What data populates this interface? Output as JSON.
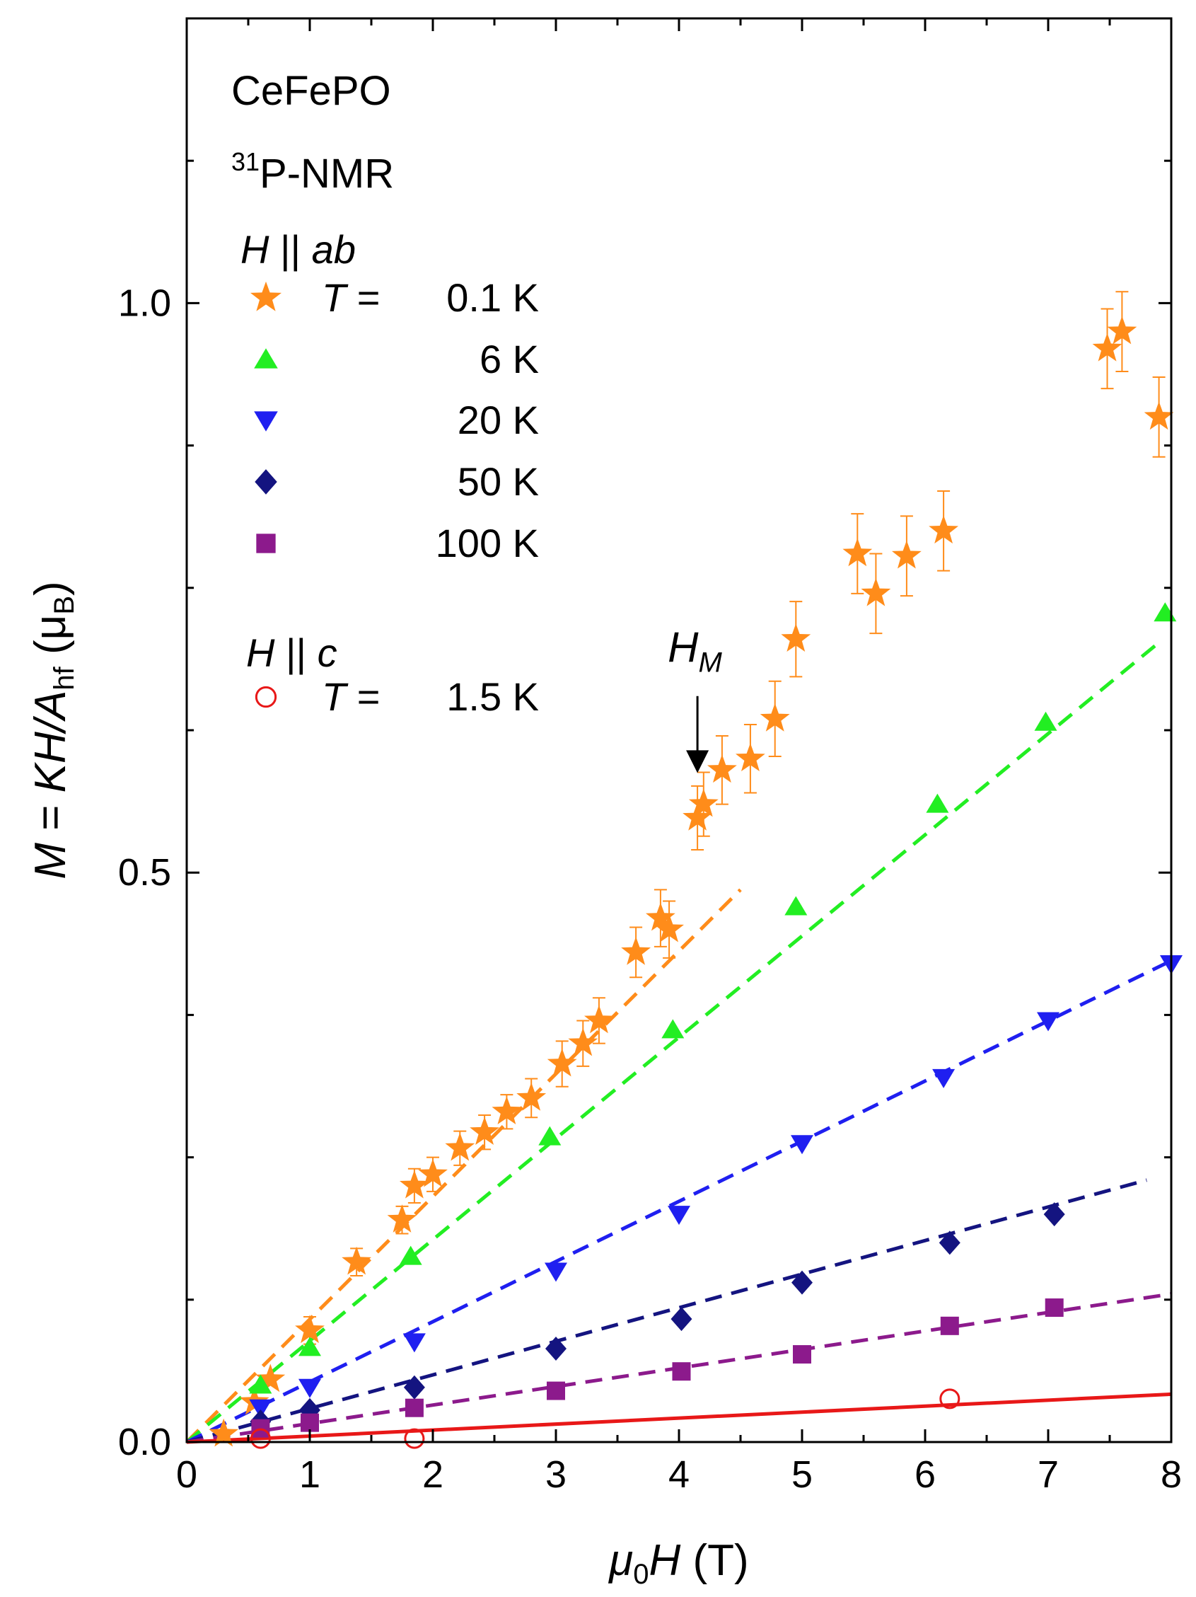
{
  "chart_data": {
    "type": "scatter",
    "title": "",
    "xlabel": {
      "prefix": "μ",
      "sub": "0",
      "var": "H",
      "unit": " (T)"
    },
    "ylabel": {
      "var1": "M",
      "eq": " = ",
      "var2": "KH/A",
      "sub": "hf",
      "unit_open": " (μ",
      "unit_sub": "B",
      "unit_close": ")"
    },
    "xlim": [
      0,
      8
    ],
    "ylim": [
      0,
      1.25
    ],
    "xticks": [
      0,
      1,
      2,
      3,
      4,
      5,
      6,
      7,
      8
    ],
    "yticks": [
      0.0,
      0.5,
      1.0
    ],
    "ytick_labels": [
      "0.0",
      "0.5",
      "1.0"
    ],
    "annotations": {
      "compound": "CeFePO",
      "nmr_mass": "31",
      "nmr_rest": "P-NMR",
      "group_ab": {
        "H": "H",
        "sym": " || ",
        "dir": "ab"
      },
      "group_c": {
        "H": "H",
        "sym": " || ",
        "dir": "c"
      },
      "hm_label": "H",
      "hm_sub": "M",
      "hm_x": 4.15,
      "hm_y_from": 0.655,
      "hm_y_to": 0.59
    },
    "series": [
      {
        "name": "0.1 K",
        "legend_prefix": "T",
        "legend_eq": " =  ",
        "label": "0.1 K",
        "marker": "star",
        "color": "#ff8c1a",
        "x": [
          0.3,
          0.55,
          0.68,
          1.0,
          1.38,
          1.75,
          1.85,
          2.0,
          2.22,
          2.42,
          2.6,
          2.8,
          3.05,
          3.22,
          3.35,
          3.65,
          3.85,
          3.92,
          4.15,
          4.2,
          4.35,
          4.58,
          4.78,
          4.95,
          5.45,
          5.6,
          5.85,
          6.15,
          7.48,
          7.6,
          7.9
        ],
        "y": [
          0.007,
          0.035,
          0.055,
          0.098,
          0.158,
          0.195,
          0.225,
          0.235,
          0.258,
          0.272,
          0.29,
          0.302,
          0.332,
          0.35,
          0.37,
          0.43,
          0.46,
          0.45,
          0.548,
          0.56,
          0.59,
          0.6,
          0.635,
          0.705,
          0.78,
          0.745,
          0.778,
          0.8,
          0.96,
          0.975,
          0.9
        ],
        "err": [
          0,
          0,
          0,
          0.012,
          0.012,
          0.012,
          0.015,
          0.015,
          0.015,
          0.015,
          0.015,
          0.017,
          0.02,
          0.02,
          0.02,
          0.022,
          0.025,
          0.025,
          0.028,
          0.028,
          0.03,
          0.03,
          0.033,
          0.033,
          0.035,
          0.035,
          0.035,
          0.035,
          0.035,
          0.035,
          0.035
        ],
        "fit": {
          "x": [
            0,
            4.5
          ],
          "y": [
            0,
            0.485
          ]
        }
      },
      {
        "name": "6 K",
        "legend_prefix": "",
        "legend_eq": "",
        "label": "6 K",
        "marker": "triangle-up",
        "color": "#22ee22",
        "x": [
          0.6,
          1.0,
          1.82,
          2.95,
          3.95,
          4.95,
          6.1,
          6.98,
          7.95
        ],
        "y": [
          0.05,
          0.083,
          0.163,
          0.268,
          0.362,
          0.47,
          0.56,
          0.632,
          0.728
        ],
        "fit": {
          "x": [
            0,
            7.9
          ],
          "y": [
            0,
            0.702
          ]
        }
      },
      {
        "name": "20 K",
        "legend_prefix": "",
        "legend_eq": "",
        "label": "20 K",
        "marker": "triangle-down",
        "color": "#1f1ff0",
        "x": [
          0.6,
          1.0,
          1.85,
          3.0,
          4.0,
          5.0,
          6.15,
          7.0,
          8.0
        ],
        "y": [
          0.03,
          0.048,
          0.088,
          0.15,
          0.2,
          0.262,
          0.32,
          0.37,
          0.42
        ],
        "fit": {
          "x": [
            0,
            7.95
          ],
          "y": [
            0,
            0.42
          ]
        }
      },
      {
        "name": "50 K",
        "legend_prefix": "",
        "legend_eq": "",
        "label": "50 K",
        "marker": "diamond",
        "color": "#141480",
        "x": [
          0.6,
          1.0,
          1.85,
          3.0,
          4.02,
          5.0,
          6.2,
          7.05
        ],
        "y": [
          0.018,
          0.028,
          0.048,
          0.082,
          0.108,
          0.14,
          0.175,
          0.2
        ],
        "fit": {
          "x": [
            0,
            7.8
          ],
          "y": [
            0,
            0.23
          ]
        }
      },
      {
        "name": "100 K",
        "legend_prefix": "",
        "legend_eq": "",
        "label": "100 K",
        "marker": "square",
        "color": "#8c1a8c",
        "x": [
          0.6,
          1.0,
          1.85,
          3.0,
          4.02,
          5.0,
          6.2,
          7.05
        ],
        "y": [
          0.012,
          0.017,
          0.03,
          0.045,
          0.062,
          0.077,
          0.102,
          0.118
        ],
        "fit": {
          "x": [
            0,
            8
          ],
          "y": [
            0,
            0.13
          ]
        }
      },
      {
        "name": "1.5 K (H || c)",
        "legend_prefix": "T",
        "legend_eq": " =  ",
        "label": "1.5 K",
        "marker": "circle-open",
        "color": "#e81818",
        "x": [
          0.6,
          1.85,
          6.2
        ],
        "y": [
          0.003,
          0.003,
          0.038
        ],
        "fit": {
          "x": [
            0,
            8
          ],
          "y": [
            0,
            0.042
          ],
          "style": "solid"
        }
      }
    ]
  }
}
